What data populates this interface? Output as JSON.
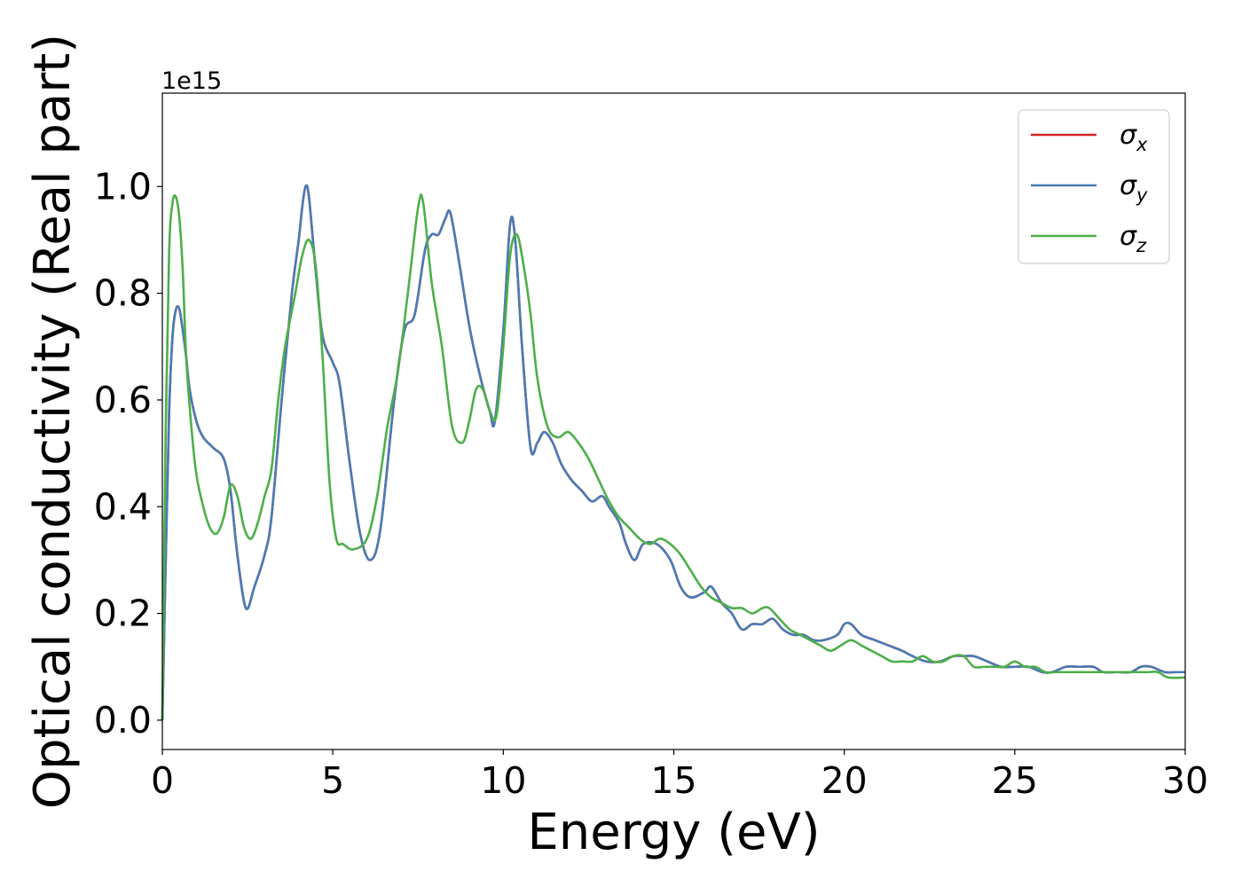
{
  "chart_data": {
    "type": "line",
    "title": "",
    "xlabel": "Energy (eV)",
    "ylabel": "Optical conductivity (Real part)",
    "y_offset_text": "1e15",
    "xlim": [
      0,
      30
    ],
    "ylim": [
      -0.055,
      1.175
    ],
    "y_scale": 1000000000000000.0,
    "x_ticks": [
      0,
      5,
      10,
      15,
      20,
      25,
      30
    ],
    "x_tick_labels": [
      "0",
      "5",
      "10",
      "15",
      "20",
      "25",
      "30"
    ],
    "y_ticks": [
      0.0,
      0.2,
      0.4,
      0.6,
      0.8,
      1.0
    ],
    "y_tick_labels": [
      "0.0",
      "0.2",
      "0.4",
      "0.6",
      "0.8",
      "1.0"
    ],
    "grid": false,
    "legend_position": "top-right",
    "series": [
      {
        "name": "σx",
        "symbol": "σ",
        "subscript": "x",
        "color": "#d62728",
        "x": [
          0,
          0.1,
          0.2,
          0.3,
          0.4,
          0.5,
          0.6,
          0.7,
          0.8,
          1.0,
          1.2,
          1.5,
          1.8,
          2.0,
          2.2,
          2.45,
          2.7,
          3.0,
          3.2,
          3.5,
          3.8,
          4.0,
          4.1,
          4.2,
          4.3,
          4.5,
          4.7,
          5.0,
          5.2,
          5.5,
          5.8,
          6.1,
          6.4,
          6.8,
          7.1,
          7.4,
          7.7,
          7.9,
          8.1,
          8.3,
          8.45,
          8.7,
          9.0,
          9.3,
          9.6,
          9.75,
          10.0,
          10.2,
          10.35,
          10.55,
          10.8,
          11.0,
          11.2,
          11.45,
          11.7,
          12.0,
          12.3,
          12.6,
          12.9,
          13.1,
          13.4,
          13.6,
          13.85,
          14.1,
          14.5,
          14.9,
          15.2,
          15.5,
          15.9,
          16.1,
          16.4,
          16.7,
          17.0,
          17.3,
          17.6,
          17.9,
          18.2,
          18.5,
          18.8,
          19.1,
          19.4,
          19.8,
          20.0,
          20.2,
          20.5,
          20.9,
          21.3,
          21.7,
          22.0,
          22.4,
          22.8,
          23.2,
          23.5,
          23.8,
          24.2,
          24.6,
          25.0,
          25.4,
          25.8,
          26.1,
          26.5,
          26.9,
          27.3,
          27.6,
          28.0,
          28.4,
          28.7,
          29.0,
          29.4,
          29.7,
          30.0
        ],
        "values": [
          0.0,
          0.3,
          0.58,
          0.72,
          0.77,
          0.77,
          0.73,
          0.68,
          0.62,
          0.56,
          0.53,
          0.51,
          0.49,
          0.43,
          0.31,
          0.21,
          0.25,
          0.31,
          0.38,
          0.6,
          0.8,
          0.9,
          0.96,
          1.0,
          0.98,
          0.84,
          0.72,
          0.67,
          0.63,
          0.48,
          0.35,
          0.3,
          0.36,
          0.6,
          0.73,
          0.76,
          0.88,
          0.91,
          0.91,
          0.94,
          0.95,
          0.86,
          0.74,
          0.65,
          0.58,
          0.56,
          0.73,
          0.93,
          0.9,
          0.7,
          0.51,
          0.52,
          0.54,
          0.52,
          0.48,
          0.45,
          0.43,
          0.41,
          0.42,
          0.4,
          0.37,
          0.33,
          0.3,
          0.33,
          0.33,
          0.3,
          0.25,
          0.23,
          0.24,
          0.25,
          0.22,
          0.2,
          0.17,
          0.18,
          0.18,
          0.19,
          0.17,
          0.16,
          0.16,
          0.15,
          0.15,
          0.16,
          0.18,
          0.18,
          0.16,
          0.15,
          0.14,
          0.13,
          0.12,
          0.11,
          0.11,
          0.12,
          0.12,
          0.12,
          0.11,
          0.1,
          0.1,
          0.1,
          0.09,
          0.09,
          0.1,
          0.1,
          0.1,
          0.09,
          0.09,
          0.09,
          0.1,
          0.1,
          0.09,
          0.09,
          0.09
        ]
      },
      {
        "name": "σy",
        "symbol": "σ",
        "subscript": "y",
        "color": "#4a7bb5",
        "x": [
          0,
          0.1,
          0.2,
          0.3,
          0.4,
          0.5,
          0.6,
          0.7,
          0.8,
          1.0,
          1.2,
          1.5,
          1.8,
          2.0,
          2.2,
          2.45,
          2.7,
          3.0,
          3.2,
          3.5,
          3.8,
          4.0,
          4.1,
          4.2,
          4.3,
          4.5,
          4.7,
          5.0,
          5.2,
          5.5,
          5.8,
          6.1,
          6.4,
          6.8,
          7.1,
          7.4,
          7.7,
          7.9,
          8.1,
          8.3,
          8.45,
          8.7,
          9.0,
          9.3,
          9.6,
          9.75,
          10.0,
          10.2,
          10.35,
          10.55,
          10.8,
          11.0,
          11.2,
          11.45,
          11.7,
          12.0,
          12.3,
          12.6,
          12.9,
          13.1,
          13.4,
          13.6,
          13.85,
          14.1,
          14.5,
          14.9,
          15.2,
          15.5,
          15.9,
          16.1,
          16.4,
          16.7,
          17.0,
          17.3,
          17.6,
          17.9,
          18.2,
          18.5,
          18.8,
          19.1,
          19.4,
          19.8,
          20.0,
          20.2,
          20.5,
          20.9,
          21.3,
          21.7,
          22.0,
          22.4,
          22.8,
          23.2,
          23.5,
          23.8,
          24.2,
          24.6,
          25.0,
          25.4,
          25.8,
          26.1,
          26.5,
          26.9,
          27.3,
          27.6,
          28.0,
          28.4,
          28.7,
          29.0,
          29.4,
          29.7,
          30.0
        ],
        "values": [
          0.0,
          0.3,
          0.58,
          0.72,
          0.77,
          0.77,
          0.73,
          0.68,
          0.62,
          0.56,
          0.53,
          0.51,
          0.49,
          0.43,
          0.31,
          0.21,
          0.25,
          0.31,
          0.38,
          0.6,
          0.8,
          0.9,
          0.96,
          1.0,
          0.98,
          0.84,
          0.72,
          0.67,
          0.63,
          0.48,
          0.35,
          0.3,
          0.36,
          0.6,
          0.73,
          0.76,
          0.88,
          0.91,
          0.91,
          0.94,
          0.95,
          0.86,
          0.74,
          0.65,
          0.58,
          0.56,
          0.73,
          0.93,
          0.9,
          0.7,
          0.51,
          0.52,
          0.54,
          0.52,
          0.48,
          0.45,
          0.43,
          0.41,
          0.42,
          0.4,
          0.37,
          0.33,
          0.3,
          0.33,
          0.33,
          0.3,
          0.25,
          0.23,
          0.24,
          0.25,
          0.22,
          0.2,
          0.17,
          0.18,
          0.18,
          0.19,
          0.17,
          0.16,
          0.16,
          0.15,
          0.15,
          0.16,
          0.18,
          0.18,
          0.16,
          0.15,
          0.14,
          0.13,
          0.12,
          0.11,
          0.11,
          0.12,
          0.12,
          0.12,
          0.11,
          0.1,
          0.1,
          0.1,
          0.09,
          0.09,
          0.1,
          0.1,
          0.1,
          0.09,
          0.09,
          0.09,
          0.1,
          0.1,
          0.09,
          0.09,
          0.09
        ]
      },
      {
        "name": "σz",
        "symbol": "σ",
        "subscript": "z",
        "color": "#4daf4a",
        "x": [
          0,
          0.1,
          0.2,
          0.3,
          0.4,
          0.5,
          0.6,
          0.7,
          0.85,
          1.0,
          1.2,
          1.4,
          1.6,
          1.8,
          2.0,
          2.2,
          2.4,
          2.6,
          2.8,
          3.0,
          3.2,
          3.4,
          3.6,
          3.9,
          4.1,
          4.3,
          4.5,
          4.7,
          4.9,
          5.1,
          5.3,
          5.6,
          6.0,
          6.3,
          6.6,
          6.9,
          7.2,
          7.5,
          7.65,
          7.9,
          8.2,
          8.5,
          8.8,
          9.0,
          9.2,
          9.4,
          9.6,
          9.8,
          10.0,
          10.2,
          10.4,
          10.6,
          10.8,
          11.0,
          11.3,
          11.6,
          11.9,
          12.2,
          12.5,
          12.8,
          13.1,
          13.4,
          13.7,
          14.0,
          14.3,
          14.6,
          14.9,
          15.2,
          15.5,
          15.8,
          16.1,
          16.4,
          16.7,
          17.0,
          17.3,
          17.6,
          17.8,
          18.1,
          18.4,
          18.7,
          19.0,
          19.3,
          19.6,
          19.9,
          20.2,
          20.5,
          20.8,
          21.1,
          21.4,
          21.7,
          22.0,
          22.3,
          22.6,
          22.9,
          23.2,
          23.5,
          23.8,
          24.1,
          24.4,
          24.7,
          25.0,
          25.3,
          25.6,
          25.9,
          26.2,
          26.5,
          26.8,
          27.1,
          27.4,
          27.7,
          28.0,
          28.3,
          28.6,
          28.9,
          29.2,
          29.5,
          30.0
        ],
        "values": [
          0.0,
          0.55,
          0.88,
          0.97,
          0.98,
          0.94,
          0.84,
          0.68,
          0.55,
          0.46,
          0.4,
          0.36,
          0.35,
          0.38,
          0.44,
          0.42,
          0.36,
          0.34,
          0.37,
          0.42,
          0.47,
          0.6,
          0.7,
          0.8,
          0.87,
          0.9,
          0.85,
          0.68,
          0.45,
          0.34,
          0.33,
          0.32,
          0.34,
          0.42,
          0.55,
          0.65,
          0.8,
          0.96,
          0.97,
          0.82,
          0.7,
          0.55,
          0.52,
          0.56,
          0.62,
          0.62,
          0.58,
          0.57,
          0.7,
          0.87,
          0.91,
          0.85,
          0.76,
          0.64,
          0.55,
          0.53,
          0.54,
          0.52,
          0.49,
          0.45,
          0.41,
          0.38,
          0.36,
          0.34,
          0.33,
          0.34,
          0.33,
          0.31,
          0.28,
          0.25,
          0.23,
          0.22,
          0.21,
          0.21,
          0.2,
          0.21,
          0.21,
          0.19,
          0.17,
          0.16,
          0.15,
          0.14,
          0.13,
          0.14,
          0.15,
          0.14,
          0.13,
          0.12,
          0.11,
          0.11,
          0.11,
          0.12,
          0.11,
          0.11,
          0.12,
          0.12,
          0.1,
          0.1,
          0.1,
          0.1,
          0.11,
          0.1,
          0.1,
          0.09,
          0.09,
          0.09,
          0.09,
          0.09,
          0.09,
          0.09,
          0.09,
          0.09,
          0.09,
          0.09,
          0.09,
          0.08,
          0.08
        ]
      }
    ]
  }
}
